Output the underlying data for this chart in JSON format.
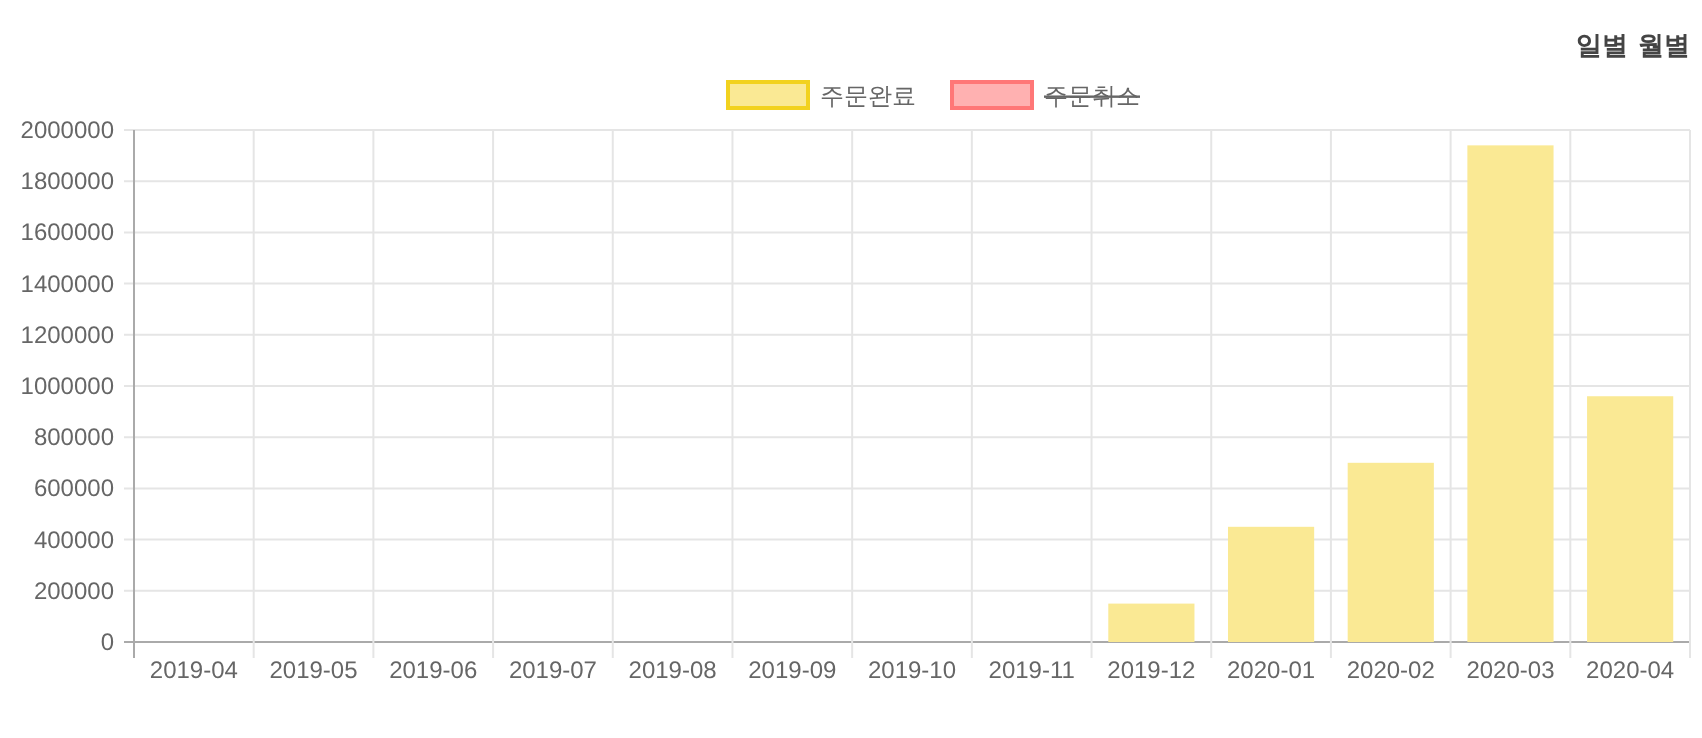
{
  "chart_data": {
    "type": "bar",
    "categories": [
      "2019-04",
      "2019-05",
      "2019-06",
      "2019-07",
      "2019-08",
      "2019-09",
      "2019-10",
      "2019-11",
      "2019-12",
      "2020-01",
      "2020-02",
      "2020-03",
      "2020-04"
    ],
    "series": [
      {
        "name": "주문완료",
        "color": "#fae994",
        "values": [
          0,
          0,
          0,
          0,
          0,
          0,
          0,
          0,
          150000,
          450000,
          700000,
          1940000,
          960000
        ]
      },
      {
        "name": "주문취소",
        "color": "#ffb1b1",
        "values": [
          null,
          null,
          null,
          null,
          null,
          null,
          null,
          null,
          null,
          null,
          null,
          null,
          null
        ]
      }
    ],
    "ylim": [
      0,
      2000000
    ],
    "yticks": [
      0,
      200000,
      400000,
      600000,
      800000,
      1000000,
      1200000,
      1400000,
      1600000,
      1800000,
      2000000
    ],
    "grid": true,
    "legend": "top",
    "annotations": [
      "일별",
      "월별"
    ]
  }
}
